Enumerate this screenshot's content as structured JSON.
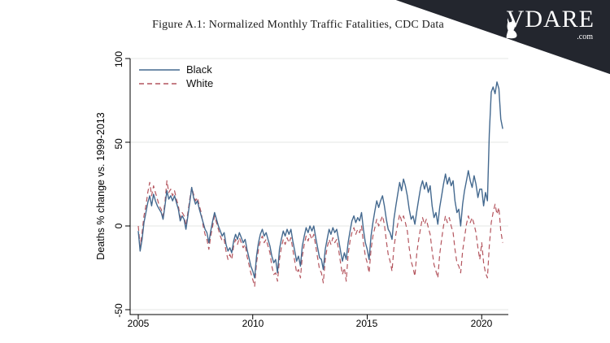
{
  "figure": {
    "title": "Figure A.1: Normalized Monthly Traffic Fatalities, CDC Data"
  },
  "logo": {
    "brand": "VDARE",
    "domain_suffix": ".com",
    "icon": "fox-silhouette",
    "background_color": "#23262e",
    "text_color": "#ffffff"
  },
  "chart_data": {
    "type": "line",
    "title": "Figure A.1: Normalized Monthly Traffic Fatalities, CDC Data",
    "xlabel": "",
    "ylabel": "Deaths % change vs. 1999-2013",
    "x_unit": "monthly",
    "x_start": "2005-01",
    "x_end": "2020-12",
    "xlim": [
      2005,
      2021.2
    ],
    "ylim": [
      -50,
      100
    ],
    "y_ticks": [
      100,
      50,
      0,
      -50
    ],
    "x_ticks": [
      2005,
      2010,
      2015,
      2020
    ],
    "grid": true,
    "grid_color": "#e6e7e4",
    "legend_position": "top-left-inside",
    "series": [
      {
        "name": "Black",
        "color": "#44698f",
        "style": "solid",
        "values": [
          -3,
          -15,
          -8,
          2,
          8,
          14,
          18,
          12,
          19,
          15,
          12,
          10,
          8,
          4,
          12,
          21,
          16,
          18,
          15,
          18,
          14,
          10,
          3,
          6,
          4,
          -2,
          6,
          14,
          23,
          17,
          13,
          15,
          10,
          6,
          2,
          -2,
          -4,
          -10,
          -3,
          3,
          8,
          4,
          0,
          -3,
          -6,
          -4,
          -11,
          -15,
          -13,
          -16,
          -9,
          -5,
          -8,
          -4,
          -7,
          -10,
          -8,
          -14,
          -19,
          -24,
          -27,
          -31,
          -18,
          -10,
          -5,
          -2,
          -6,
          -4,
          -8,
          -12,
          -18,
          -22,
          -20,
          -28,
          -14,
          -8,
          -3,
          -6,
          -2,
          -5,
          -2,
          -9,
          -15,
          -21,
          -18,
          -24,
          -12,
          -6,
          -1,
          -4,
          0,
          -3,
          0,
          -7,
          -13,
          -19,
          -20,
          -26,
          -14,
          -8,
          -2,
          -5,
          -1,
          -4,
          -2,
          -8,
          -15,
          -21,
          -16,
          -20,
          -10,
          -3,
          3,
          6,
          2,
          5,
          3,
          8,
          -2,
          -10,
          -14,
          -20,
          -6,
          2,
          9,
          15,
          11,
          15,
          18,
          12,
          4,
          -2,
          -4,
          -8,
          4,
          12,
          19,
          26,
          21,
          28,
          24,
          18,
          10,
          4,
          6,
          1,
          9,
          16,
          23,
          27,
          22,
          26,
          20,
          24,
          12,
          5,
          8,
          1,
          11,
          18,
          25,
          31,
          25,
          29,
          24,
          27,
          15,
          8,
          10,
          0,
          13,
          21,
          27,
          33,
          27,
          23,
          30,
          25,
          17,
          22,
          22,
          12,
          20,
          15,
          55,
          80,
          83,
          79,
          86,
          82,
          64,
          58
        ]
      },
      {
        "name": "White",
        "color": "#b4555e",
        "style": "dashed",
        "values": [
          0,
          -12,
          -4,
          6,
          12,
          20,
          26,
          18,
          24,
          20,
          16,
          12,
          10,
          6,
          14,
          27,
          20,
          22,
          18,
          21,
          16,
          12,
          5,
          8,
          6,
          0,
          8,
          16,
          23,
          19,
          15,
          17,
          12,
          8,
          0,
          -5,
          -8,
          -14,
          -6,
          0,
          6,
          2,
          -2,
          -6,
          -9,
          -8,
          -15,
          -20,
          -17,
          -20,
          -12,
          -8,
          -11,
          -7,
          -10,
          -13,
          -11,
          -18,
          -23,
          -28,
          -32,
          -36,
          -22,
          -14,
          -9,
          -6,
          -10,
          -8,
          -12,
          -16,
          -24,
          -29,
          -28,
          -33,
          -20,
          -13,
          -8,
          -11,
          -7,
          -10,
          -7,
          -14,
          -21,
          -28,
          -26,
          -31,
          -18,
          -11,
          -6,
          -9,
          -5,
          -8,
          -5,
          -12,
          -19,
          -26,
          -28,
          -34,
          -20,
          -13,
          -8,
          -11,
          -7,
          -10,
          -8,
          -14,
          -22,
          -29,
          -25,
          -33,
          -17,
          -9,
          -4,
          -1,
          -5,
          -2,
          -4,
          0,
          -10,
          -18,
          -22,
          -28,
          -14,
          -6,
          -1,
          4,
          0,
          3,
          6,
          1,
          -9,
          -17,
          -21,
          -27,
          -13,
          -5,
          1,
          7,
          3,
          6,
          2,
          -3,
          -13,
          -21,
          -25,
          -30,
          -16,
          -8,
          -1,
          5,
          1,
          4,
          -1,
          -5,
          -15,
          -23,
          -27,
          -31,
          -17,
          -8,
          0,
          6,
          2,
          5,
          0,
          -4,
          -14,
          -22,
          -24,
          -28,
          -15,
          -7,
          1,
          6,
          2,
          5,
          1,
          -4,
          -13,
          -20,
          -10,
          -22,
          -28,
          -31,
          -12,
          2,
          8,
          13,
          7,
          11,
          -3,
          -10
        ]
      }
    ]
  }
}
